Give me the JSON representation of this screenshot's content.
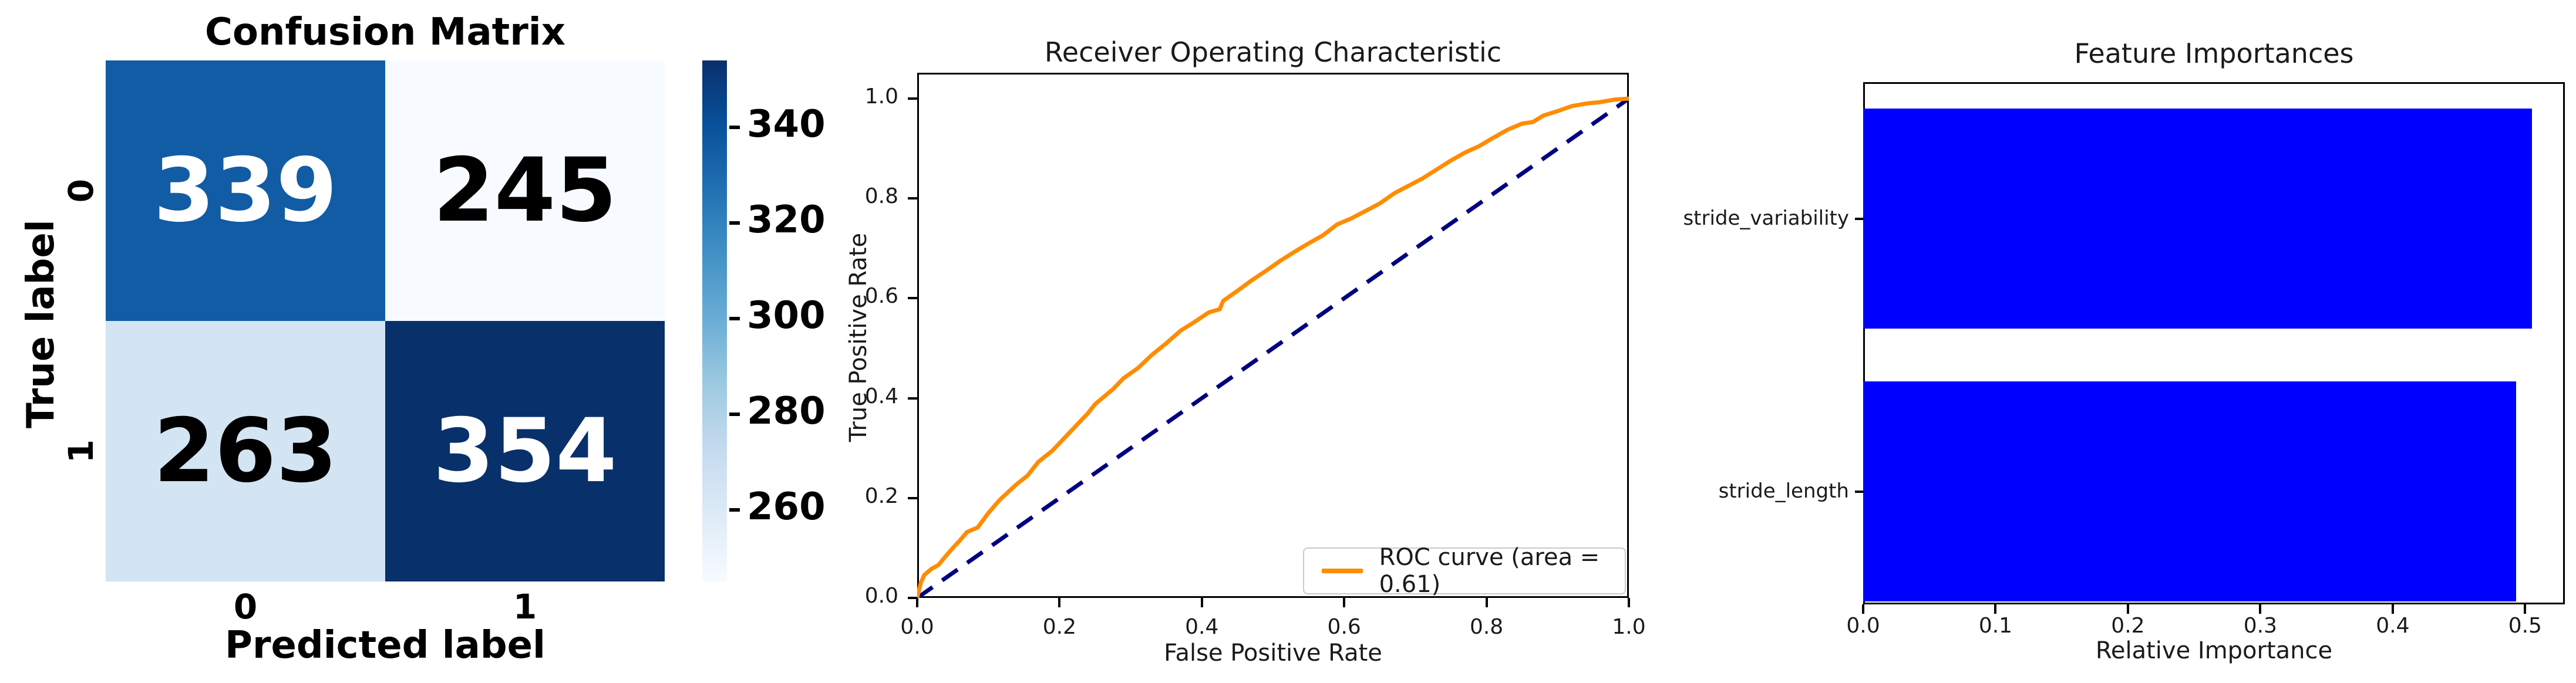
{
  "chart_data": [
    {
      "type": "heatmap",
      "title": "Confusion Matrix",
      "xlabel": "Predicted label",
      "ylabel": "True label",
      "x_tick_labels": [
        "0",
        "1"
      ],
      "y_tick_labels": [
        "0",
        "1"
      ],
      "values": [
        [
          339,
          245
        ],
        [
          263,
          354
        ]
      ],
      "cell_colors": [
        [
          "#115ca4",
          "#f7fbff"
        ],
        [
          "#d3e4f3",
          "#08306b"
        ]
      ],
      "cell_text_colors": [
        [
          "#ffffff",
          "#000000"
        ],
        [
          "#000000",
          "#ffffff"
        ]
      ],
      "colormap": "Blues",
      "vmin": 245,
      "vmax": 354,
      "colorbar_ticks": [
        260,
        280,
        300,
        320,
        340
      ],
      "colorbar_gradient": [
        "#f7fbff",
        "#deebf7",
        "#c6dbef",
        "#9ecae1",
        "#6baed6",
        "#4292c6",
        "#2171b5",
        "#08519c",
        "#08306b"
      ]
    },
    {
      "type": "line",
      "title": "Receiver Operating Characteristic",
      "xlabel": "False Positive Rate",
      "ylabel": "True Positive Rate",
      "xlim": [
        0.0,
        1.0
      ],
      "ylim": [
        0.0,
        1.05
      ],
      "x_tick_labels": [
        "0.0",
        "0.2",
        "0.4",
        "0.6",
        "0.8",
        "1.0"
      ],
      "y_tick_labels": [
        "0.0",
        "0.2",
        "0.4",
        "0.6",
        "0.8",
        "1.0"
      ],
      "xticks": [
        0.0,
        0.2,
        0.4,
        0.6,
        0.8,
        1.0
      ],
      "yticks": [
        0.0,
        0.2,
        0.4,
        0.6,
        0.8,
        1.0
      ],
      "legend_position": "lower right",
      "legend_label": "ROC curve (area = 0.61)",
      "auc": 0.61,
      "series": [
        {
          "name": "ROC curve (area = 0.61)",
          "color": "#ff8c00",
          "style": "solid",
          "points": [
            [
              0,
              0
            ],
            [
              0.005,
              0.03
            ],
            [
              0.01,
              0.046
            ],
            [
              0.02,
              0.058
            ],
            [
              0.03,
              0.066
            ],
            [
              0.035,
              0.075
            ],
            [
              0.05,
              0.1
            ],
            [
              0.06,
              0.115
            ],
            [
              0.07,
              0.132
            ],
            [
              0.085,
              0.141
            ],
            [
              0.1,
              0.17
            ],
            [
              0.115,
              0.195
            ],
            [
              0.13,
              0.215
            ],
            [
              0.14,
              0.228
            ],
            [
              0.155,
              0.245
            ],
            [
              0.17,
              0.272
            ],
            [
              0.19,
              0.295
            ],
            [
              0.2,
              0.31
            ],
            [
              0.22,
              0.34
            ],
            [
              0.24,
              0.37
            ],
            [
              0.25,
              0.388
            ],
            [
              0.26,
              0.4
            ],
            [
              0.275,
              0.418
            ],
            [
              0.29,
              0.44
            ],
            [
              0.31,
              0.46
            ],
            [
              0.33,
              0.487
            ],
            [
              0.35,
              0.51
            ],
            [
              0.37,
              0.535
            ],
            [
              0.39,
              0.553
            ],
            [
              0.41,
              0.572
            ],
            [
              0.425,
              0.578
            ],
            [
              0.43,
              0.595
            ],
            [
              0.45,
              0.615
            ],
            [
              0.47,
              0.636
            ],
            [
              0.49,
              0.655
            ],
            [
              0.51,
              0.675
            ],
            [
              0.53,
              0.693
            ],
            [
              0.55,
              0.71
            ],
            [
              0.57,
              0.726
            ],
            [
              0.59,
              0.748
            ],
            [
              0.61,
              0.76
            ],
            [
              0.63,
              0.775
            ],
            [
              0.65,
              0.79
            ],
            [
              0.67,
              0.81
            ],
            [
              0.69,
              0.825
            ],
            [
              0.71,
              0.84
            ],
            [
              0.73,
              0.858
            ],
            [
              0.75,
              0.876
            ],
            [
              0.77,
              0.892
            ],
            [
              0.79,
              0.905
            ],
            [
              0.81,
              0.922
            ],
            [
              0.83,
              0.938
            ],
            [
              0.85,
              0.95
            ],
            [
              0.865,
              0.953
            ],
            [
              0.88,
              0.966
            ],
            [
              0.9,
              0.975
            ],
            [
              0.92,
              0.985
            ],
            [
              0.94,
              0.99
            ],
            [
              0.96,
              0.993
            ],
            [
              0.98,
              0.998
            ],
            [
              1,
              1
            ]
          ]
        },
        {
          "name": "chance-diagonal",
          "color": "#000080",
          "style": "dashed",
          "points": [
            [
              0,
              0
            ],
            [
              1,
              1
            ]
          ]
        }
      ]
    },
    {
      "type": "bar",
      "orientation": "horizontal",
      "title": "Feature Importances",
      "xlabel": "Relative Importance",
      "categories": [
        "stride_variability",
        "stride_length"
      ],
      "values": [
        0.505,
        0.493
      ],
      "bar_color": "#0000ff",
      "xlim": [
        0.0,
        0.53
      ],
      "x_tick_labels": [
        "0.0",
        "0.1",
        "0.2",
        "0.3",
        "0.4",
        "0.5"
      ],
      "xticks": [
        0.0,
        0.1,
        0.2,
        0.3,
        0.4,
        0.5
      ]
    }
  ]
}
